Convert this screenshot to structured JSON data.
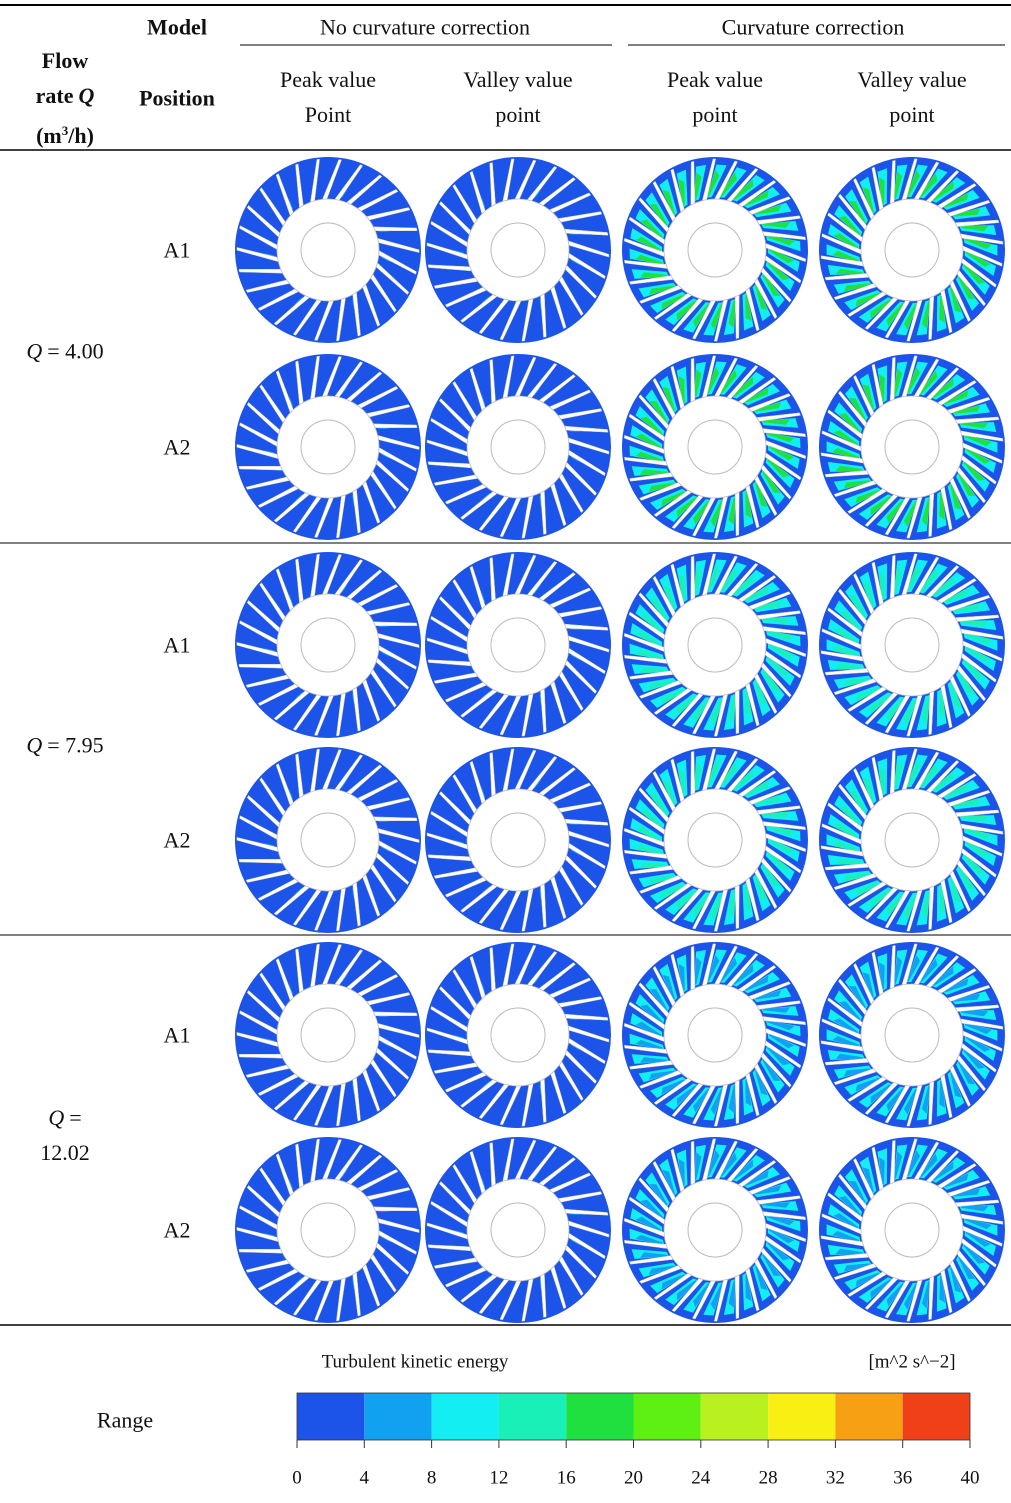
{
  "table": {
    "header": {
      "model": "Model",
      "no_correction": "No curvature correction",
      "correction": "Curvature correction",
      "flow_rate": [
        "Flow",
        "rate",
        "Q",
        "(m",
        "3",
        "/h)"
      ],
      "position": "Position",
      "columns": [
        [
          "Peak value",
          "Point"
        ],
        [
          "Valley value",
          "point"
        ],
        [
          "Peak value",
          "point"
        ],
        [
          "Valley value",
          "point"
        ]
      ]
    },
    "groups": [
      {
        "flow": {
          "symbol": "Q",
          "value": "= 4.00"
        },
        "positions": [
          "A1",
          "A2"
        ]
      },
      {
        "flow": {
          "symbol": "Q",
          "value": "= 7.95"
        },
        "positions": [
          "A1",
          "A2"
        ]
      },
      {
        "flow": {
          "symbol": "Q",
          "value": "= 12.02"
        },
        "positions": [
          "A1",
          "A2"
        ]
      }
    ],
    "footer": {
      "label": "Range",
      "colorbar": {
        "title": "Turbulent kinetic energy",
        "unit": "[m^2 s^−2]",
        "lim": [
          0,
          40
        ],
        "ticks": [
          0,
          4,
          8,
          12,
          16,
          20,
          24,
          28,
          32,
          36,
          40
        ],
        "colors": [
          "#1c53e8",
          "#12a0f0",
          "#12eef2",
          "#18f0b8",
          "#20e040",
          "#5ef012",
          "#b8f020",
          "#f8f012",
          "#f8a014",
          "#f04018"
        ]
      }
    }
  }
}
